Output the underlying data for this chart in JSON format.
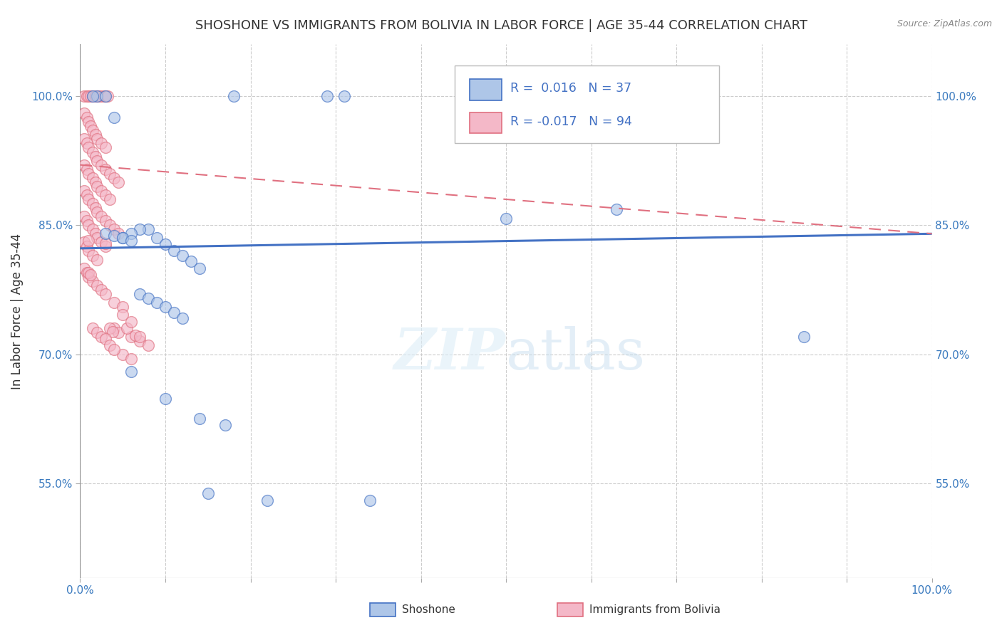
{
  "title": "SHOSHONE VS IMMIGRANTS FROM BOLIVIA IN LABOR FORCE | AGE 35-44 CORRELATION CHART",
  "source": "Source: ZipAtlas.com",
  "ylabel": "In Labor Force | Age 35-44",
  "xlim": [
    0.0,
    1.0
  ],
  "ylim": [
    0.44,
    1.06
  ],
  "xticks": [
    0.0,
    0.1,
    0.2,
    0.3,
    0.4,
    0.5,
    0.6,
    0.7,
    0.8,
    0.9,
    1.0
  ],
  "xticklabels": [
    "0.0%",
    "",
    "",
    "",
    "",
    "",
    "",
    "",
    "",
    "",
    "100.0%"
  ],
  "ytick_positions": [
    0.55,
    0.7,
    0.85,
    1.0
  ],
  "yticklabels": [
    "55.0%",
    "70.0%",
    "85.0%",
    "100.0%"
  ],
  "legend_r_shoshone": "0.016",
  "legend_n_shoshone": "37",
  "legend_r_bolivia": "-0.017",
  "legend_n_bolivia": "94",
  "shoshone_color": "#aec6e8",
  "bolivia_color": "#f4b8c8",
  "shoshone_line_color": "#4472c4",
  "bolivia_line_color": "#e07080",
  "shoshone_trend": [
    0.823,
    0.84
  ],
  "bolivia_trend": [
    0.92,
    0.84
  ],
  "shoshone_scatter": [
    [
      0.02,
      1.0
    ],
    [
      0.03,
      1.0
    ],
    [
      0.015,
      1.0
    ],
    [
      0.18,
      1.0
    ],
    [
      0.29,
      1.0
    ],
    [
      0.31,
      1.0
    ],
    [
      0.04,
      0.975
    ],
    [
      0.05,
      0.835
    ],
    [
      0.08,
      0.845
    ],
    [
      0.07,
      0.845
    ],
    [
      0.06,
      0.84
    ],
    [
      0.09,
      0.835
    ],
    [
      0.1,
      0.828
    ],
    [
      0.11,
      0.82
    ],
    [
      0.12,
      0.815
    ],
    [
      0.13,
      0.808
    ],
    [
      0.14,
      0.8
    ],
    [
      0.07,
      0.77
    ],
    [
      0.08,
      0.765
    ],
    [
      0.09,
      0.76
    ],
    [
      0.1,
      0.755
    ],
    [
      0.11,
      0.748
    ],
    [
      0.12,
      0.742
    ],
    [
      0.5,
      0.858
    ],
    [
      0.63,
      0.868
    ],
    [
      0.06,
      0.68
    ],
    [
      0.1,
      0.648
    ],
    [
      0.14,
      0.625
    ],
    [
      0.17,
      0.618
    ],
    [
      0.22,
      0.53
    ],
    [
      0.34,
      0.53
    ],
    [
      0.85,
      0.72
    ],
    [
      0.15,
      0.538
    ],
    [
      0.03,
      0.84
    ],
    [
      0.04,
      0.838
    ],
    [
      0.05,
      0.835
    ],
    [
      0.06,
      0.832
    ]
  ],
  "bolivia_scatter": [
    [
      0.005,
      1.0
    ],
    [
      0.008,
      1.0
    ],
    [
      0.01,
      1.0
    ],
    [
      0.012,
      1.0
    ],
    [
      0.015,
      1.0
    ],
    [
      0.018,
      1.0
    ],
    [
      0.02,
      1.0
    ],
    [
      0.022,
      1.0
    ],
    [
      0.025,
      1.0
    ],
    [
      0.028,
      1.0
    ],
    [
      0.03,
      1.0
    ],
    [
      0.032,
      1.0
    ],
    [
      0.005,
      0.98
    ],
    [
      0.008,
      0.975
    ],
    [
      0.01,
      0.97
    ],
    [
      0.012,
      0.965
    ],
    [
      0.015,
      0.96
    ],
    [
      0.018,
      0.955
    ],
    [
      0.02,
      0.95
    ],
    [
      0.025,
      0.945
    ],
    [
      0.03,
      0.94
    ],
    [
      0.005,
      0.95
    ],
    [
      0.008,
      0.945
    ],
    [
      0.01,
      0.94
    ],
    [
      0.015,
      0.935
    ],
    [
      0.018,
      0.93
    ],
    [
      0.02,
      0.925
    ],
    [
      0.025,
      0.92
    ],
    [
      0.03,
      0.915
    ],
    [
      0.035,
      0.91
    ],
    [
      0.04,
      0.905
    ],
    [
      0.045,
      0.9
    ],
    [
      0.005,
      0.92
    ],
    [
      0.008,
      0.915
    ],
    [
      0.01,
      0.91
    ],
    [
      0.015,
      0.905
    ],
    [
      0.018,
      0.9
    ],
    [
      0.02,
      0.895
    ],
    [
      0.025,
      0.89
    ],
    [
      0.03,
      0.885
    ],
    [
      0.035,
      0.88
    ],
    [
      0.005,
      0.89
    ],
    [
      0.008,
      0.885
    ],
    [
      0.01,
      0.88
    ],
    [
      0.015,
      0.875
    ],
    [
      0.018,
      0.87
    ],
    [
      0.02,
      0.865
    ],
    [
      0.025,
      0.86
    ],
    [
      0.03,
      0.855
    ],
    [
      0.035,
      0.85
    ],
    [
      0.04,
      0.845
    ],
    [
      0.045,
      0.84
    ],
    [
      0.005,
      0.86
    ],
    [
      0.008,
      0.855
    ],
    [
      0.01,
      0.85
    ],
    [
      0.015,
      0.845
    ],
    [
      0.018,
      0.84
    ],
    [
      0.02,
      0.835
    ],
    [
      0.025,
      0.83
    ],
    [
      0.03,
      0.825
    ],
    [
      0.005,
      0.83
    ],
    [
      0.008,
      0.825
    ],
    [
      0.01,
      0.82
    ],
    [
      0.015,
      0.815
    ],
    [
      0.02,
      0.81
    ],
    [
      0.005,
      0.8
    ],
    [
      0.008,
      0.795
    ],
    [
      0.01,
      0.79
    ],
    [
      0.015,
      0.785
    ],
    [
      0.02,
      0.78
    ],
    [
      0.025,
      0.775
    ],
    [
      0.03,
      0.77
    ],
    [
      0.04,
      0.76
    ],
    [
      0.05,
      0.755
    ],
    [
      0.04,
      0.73
    ],
    [
      0.045,
      0.725
    ],
    [
      0.06,
      0.72
    ],
    [
      0.07,
      0.715
    ],
    [
      0.035,
      0.73
    ],
    [
      0.038,
      0.726
    ],
    [
      0.055,
      0.73
    ],
    [
      0.065,
      0.722
    ],
    [
      0.015,
      0.73
    ],
    [
      0.02,
      0.725
    ],
    [
      0.025,
      0.72
    ],
    [
      0.03,
      0.718
    ],
    [
      0.01,
      0.795
    ],
    [
      0.012,
      0.792
    ],
    [
      0.01,
      0.832
    ],
    [
      0.03,
      0.829
    ],
    [
      0.05,
      0.746
    ],
    [
      0.06,
      0.738
    ],
    [
      0.07,
      0.72
    ],
    [
      0.08,
      0.71
    ],
    [
      0.05,
      0.7
    ],
    [
      0.06,
      0.695
    ],
    [
      0.035,
      0.71
    ],
    [
      0.04,
      0.705
    ]
  ]
}
